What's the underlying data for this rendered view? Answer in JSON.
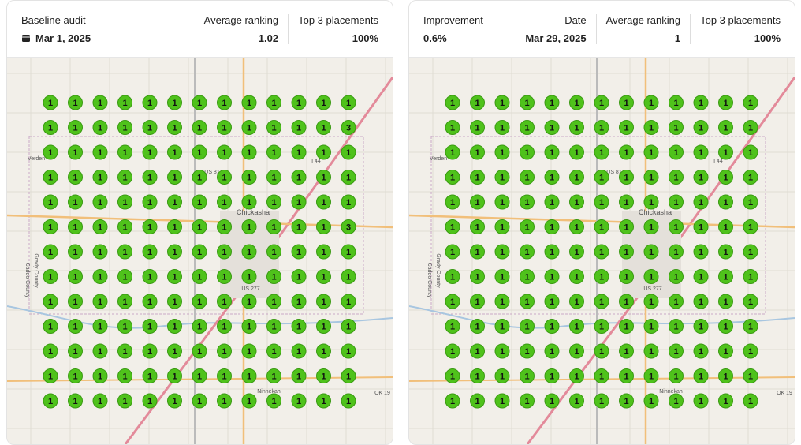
{
  "panels": [
    {
      "header": [
        {
          "label": "Baseline audit",
          "value": "Mar 1, 2025"
        },
        {
          "label": "Average ranking",
          "value": "1.02"
        },
        {
          "label": "Top 3 placements",
          "value": "100%"
        }
      ],
      "map_labels": [
        "Chickasha",
        "Verden",
        "Ninnekah",
        "I 44",
        "US 81",
        "US 277",
        "OK 19",
        "Grady County",
        "Caddo County"
      ],
      "grid": [
        [
          1,
          1,
          1,
          1,
          1,
          1,
          1,
          1,
          1,
          1,
          1,
          1,
          1
        ],
        [
          1,
          1,
          1,
          1,
          1,
          1,
          1,
          1,
          1,
          1,
          1,
          1,
          3
        ],
        [
          1,
          1,
          1,
          1,
          1,
          1,
          1,
          1,
          1,
          1,
          1,
          1,
          1
        ],
        [
          1,
          1,
          1,
          1,
          1,
          1,
          1,
          1,
          1,
          1,
          1,
          1,
          1
        ],
        [
          1,
          1,
          1,
          1,
          1,
          1,
          1,
          1,
          1,
          1,
          1,
          1,
          1
        ],
        [
          1,
          1,
          1,
          1,
          1,
          1,
          1,
          1,
          1,
          1,
          1,
          1,
          3
        ],
        [
          1,
          1,
          1,
          1,
          1,
          1,
          1,
          1,
          1,
          1,
          1,
          1,
          1
        ],
        [
          1,
          1,
          1,
          1,
          1,
          1,
          1,
          1,
          1,
          1,
          1,
          1,
          1
        ],
        [
          1,
          1,
          1,
          1,
          1,
          1,
          1,
          1,
          1,
          1,
          1,
          1,
          1
        ],
        [
          1,
          1,
          1,
          1,
          1,
          1,
          1,
          1,
          1,
          1,
          1,
          1,
          1
        ],
        [
          1,
          1,
          1,
          1,
          1,
          1,
          1,
          1,
          1,
          1,
          1,
          1,
          1
        ],
        [
          1,
          1,
          1,
          1,
          1,
          1,
          1,
          1,
          1,
          1,
          1,
          1,
          1
        ],
        [
          1,
          1,
          1,
          1,
          1,
          1,
          1,
          1,
          1,
          1,
          1,
          1,
          1
        ]
      ]
    },
    {
      "header": [
        {
          "label": "Improvement",
          "value": "0.6%"
        },
        {
          "label": "Date",
          "value": "Mar 29, 2025"
        },
        {
          "label": "Average ranking",
          "value": "1"
        },
        {
          "label": "Top 3 placements",
          "value": "100%"
        }
      ],
      "map_labels": [
        "Chickasha",
        "Verden",
        "Ninnekah",
        "I 44",
        "US 81",
        "US 277",
        "OK 19",
        "Grady County",
        "Caddo County"
      ],
      "grid": [
        [
          1,
          1,
          1,
          1,
          1,
          1,
          1,
          1,
          1,
          1,
          1,
          1,
          1
        ],
        [
          1,
          1,
          1,
          1,
          1,
          1,
          1,
          1,
          1,
          1,
          1,
          1,
          1
        ],
        [
          1,
          1,
          1,
          1,
          1,
          1,
          1,
          1,
          1,
          1,
          1,
          1,
          1
        ],
        [
          1,
          1,
          1,
          1,
          1,
          1,
          1,
          1,
          1,
          1,
          1,
          1,
          1
        ],
        [
          1,
          1,
          1,
          1,
          1,
          1,
          1,
          1,
          1,
          1,
          1,
          1,
          1
        ],
        [
          1,
          1,
          1,
          1,
          1,
          1,
          1,
          1,
          1,
          1,
          1,
          1,
          1
        ],
        [
          1,
          1,
          1,
          1,
          1,
          1,
          1,
          1,
          1,
          1,
          1,
          1,
          1
        ],
        [
          1,
          1,
          1,
          1,
          1,
          1,
          1,
          1,
          1,
          1,
          1,
          1,
          1
        ],
        [
          1,
          1,
          1,
          1,
          1,
          1,
          1,
          1,
          1,
          1,
          1,
          1,
          1
        ],
        [
          1,
          1,
          1,
          1,
          1,
          1,
          1,
          1,
          1,
          1,
          1,
          1,
          1
        ],
        [
          1,
          1,
          1,
          1,
          1,
          1,
          1,
          1,
          1,
          1,
          1,
          1,
          1
        ],
        [
          1,
          1,
          1,
          1,
          1,
          1,
          1,
          1,
          1,
          1,
          1,
          1,
          1
        ],
        [
          1,
          1,
          1,
          1,
          1,
          1,
          1,
          1,
          1,
          1,
          1,
          1,
          1
        ]
      ]
    }
  ]
}
